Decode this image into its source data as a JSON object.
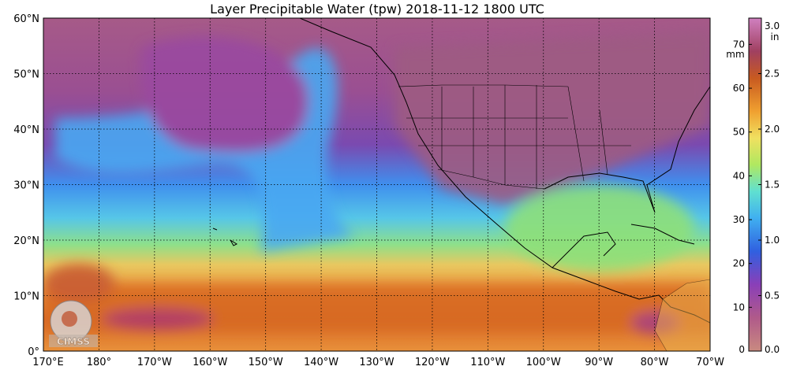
{
  "title": "Layer Precipitable Water (tpw)  2018-11-12 1800 UTC",
  "map": {
    "lat_labels": [
      "60°N",
      "50°N",
      "40°N",
      "30°N",
      "20°N",
      "10°N",
      "0°"
    ],
    "lon_labels": [
      "170°E",
      "180°",
      "170°W",
      "160°W",
      "150°W",
      "140°W",
      "130°W",
      "120°W",
      "110°W",
      "100°W",
      "90°W",
      "80°W",
      "70°W"
    ],
    "lat_range": [
      0,
      60
    ],
    "lon_range": [
      170,
      290
    ],
    "gridlines": "dotted"
  },
  "colorbar": {
    "mm_ticks": [
      "70",
      "60",
      "50",
      "40",
      "30",
      "20",
      "10",
      "0"
    ],
    "in_ticks": [
      "3.0",
      "2.5",
      "2.0",
      "1.5",
      "1.0",
      "0.5",
      "0.0"
    ],
    "mm_unit": "mm",
    "in_unit": "in",
    "mm_range": [
      0,
      76
    ],
    "in_range": [
      0,
      3
    ]
  },
  "logo": {
    "text": "CIMSS"
  },
  "colors": {
    "dry": "#9a5a7a",
    "mid_dry": "#8a3fa0",
    "moist_blue": "#3fa0f0",
    "cyan": "#60e0e0",
    "green": "#a0e060",
    "yellow": "#f0e060",
    "orange": "#f0a030",
    "wet": "#c84a20"
  }
}
